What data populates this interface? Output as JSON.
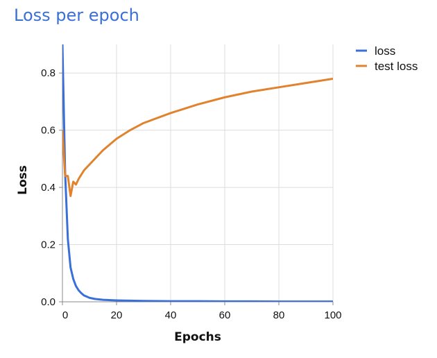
{
  "chart_data": {
    "type": "line",
    "title": "Loss per epoch",
    "xlabel": "Epochs",
    "ylabel": "Loss",
    "xlim": [
      0,
      100
    ],
    "ylim": [
      0,
      0.9
    ],
    "x_ticks": [
      0,
      20,
      40,
      60,
      80,
      100
    ],
    "y_ticks": [
      0.0,
      0.2,
      0.4,
      0.6,
      0.8
    ],
    "x_tick_labels": [
      "0",
      "20",
      "40",
      "60",
      "80",
      "100"
    ],
    "y_tick_labels": [
      "0.0",
      "0.2",
      "0.4",
      "0.6",
      "0.8"
    ],
    "grid": true,
    "legend_position": "top-right",
    "series": [
      {
        "name": "loss",
        "color": "#3a6fd8",
        "x": [
          0,
          1,
          2,
          3,
          4,
          5,
          6,
          7,
          8,
          10,
          12,
          15,
          20,
          25,
          30,
          40,
          50,
          60,
          70,
          80,
          90,
          100
        ],
        "values": [
          0.9,
          0.45,
          0.22,
          0.12,
          0.08,
          0.055,
          0.04,
          0.03,
          0.022,
          0.014,
          0.01,
          0.007,
          0.005,
          0.004,
          0.003,
          0.002,
          0.002,
          0.0015,
          0.0015,
          0.001,
          0.001,
          0.001
        ]
      },
      {
        "name": "test loss",
        "color": "#e0822e",
        "x": [
          0,
          1,
          2,
          3,
          4,
          5,
          6,
          8,
          10,
          12,
          15,
          20,
          25,
          30,
          40,
          50,
          60,
          70,
          80,
          90,
          100
        ],
        "values": [
          0.6,
          0.44,
          0.44,
          0.37,
          0.42,
          0.41,
          0.43,
          0.46,
          0.48,
          0.5,
          0.53,
          0.57,
          0.6,
          0.625,
          0.66,
          0.69,
          0.715,
          0.735,
          0.75,
          0.765,
          0.78
        ]
      }
    ]
  }
}
